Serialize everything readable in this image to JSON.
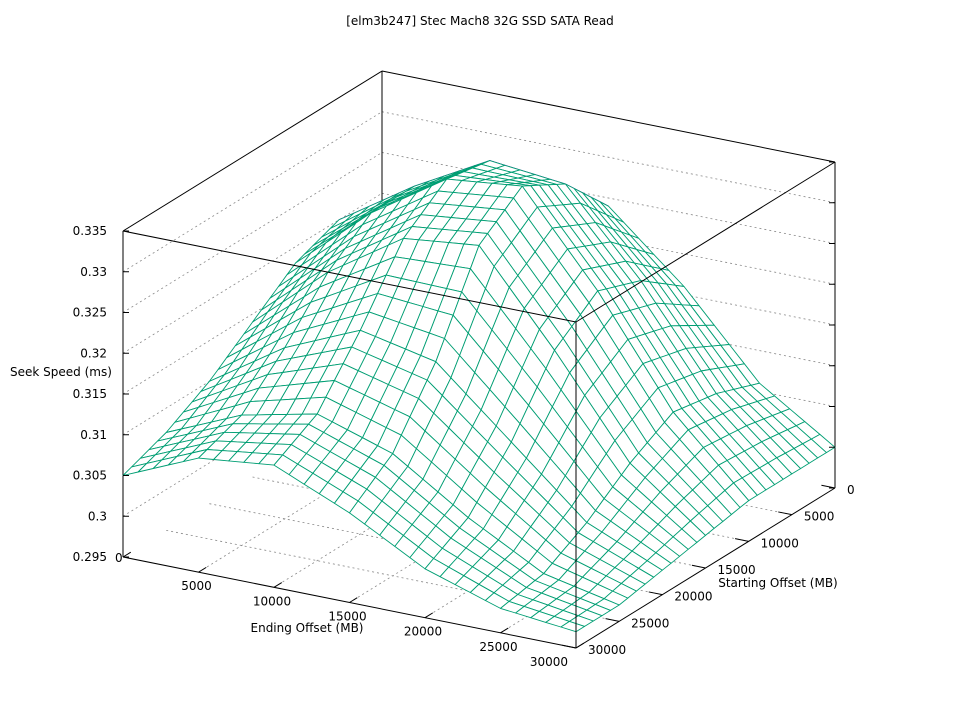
{
  "chart_data": {
    "type": "surface",
    "title": "[elm3b247] Stec Mach8 32G SSD SATA Read",
    "xlabel": "Ending Offset (MB)",
    "ylabel": "Starting Offset (MB)",
    "zlabel": "Seek Speed (ms)",
    "xlim": [
      0,
      30000
    ],
    "ylim": [
      0,
      30000
    ],
    "zlim": [
      0.295,
      0.335
    ],
    "x_ticks": [
      "0",
      "5000",
      "10000",
      "15000",
      "20000",
      "25000",
      "30000"
    ],
    "y_ticks": [
      "0",
      "5000",
      "10000",
      "15000",
      "20000",
      "25000",
      "30000"
    ],
    "z_ticks": [
      "0.295",
      "0.3",
      "0.305",
      "0.31",
      "0.315",
      "0.32",
      "0.325",
      "0.33",
      "0.335"
    ],
    "grid": true,
    "colors": {
      "top_mesh": "#9400d3",
      "bottom_mesh": "#009e73"
    },
    "ending_offset": [
      0,
      5000,
      10000,
      15000,
      20000,
      25000,
      30000
    ],
    "starting_offset": [
      0,
      5000,
      10000,
      15000,
      20000,
      25000,
      30000
    ],
    "z_by_starting_offset": [
      [
        0.318,
        0.322,
        0.326,
        0.324,
        0.316,
        0.306,
        0.3
      ],
      [
        0.32,
        0.326,
        0.331,
        0.33,
        0.32,
        0.308,
        0.3
      ],
      [
        0.318,
        0.326,
        0.332,
        0.333,
        0.322,
        0.309,
        0.3
      ],
      [
        0.314,
        0.322,
        0.328,
        0.329,
        0.318,
        0.306,
        0.299
      ],
      [
        0.31,
        0.316,
        0.32,
        0.318,
        0.31,
        0.302,
        0.298
      ],
      [
        0.307,
        0.311,
        0.313,
        0.31,
        0.304,
        0.299,
        0.297
      ],
      [
        0.305,
        0.309,
        0.31,
        0.306,
        0.301,
        0.298,
        0.297
      ]
    ]
  }
}
